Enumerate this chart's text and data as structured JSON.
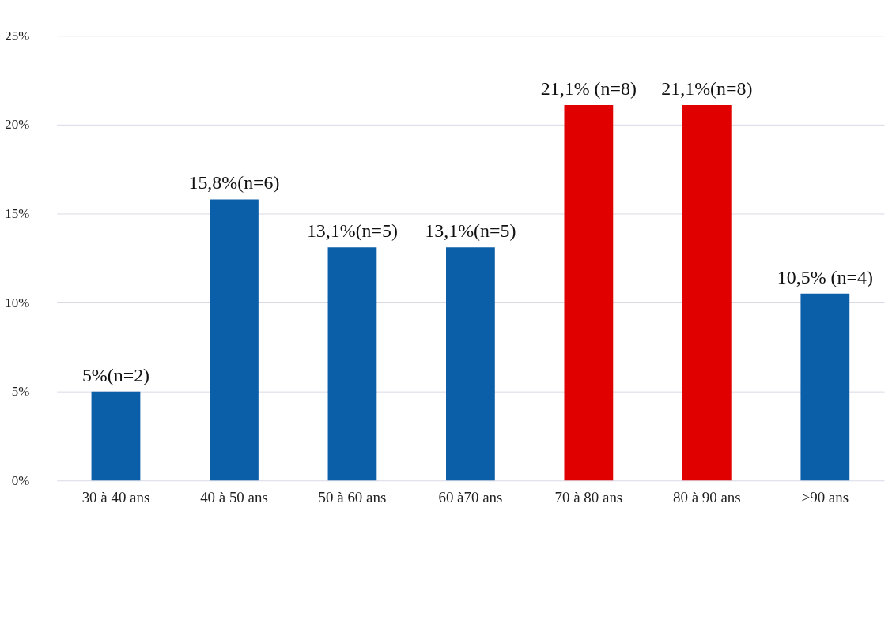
{
  "chart_data": {
    "type": "bar",
    "categories": [
      "30 à 40 ans",
      "40 à 50 ans",
      "50 à 60 ans",
      "60 à70 ans",
      "70 à 80 ans",
      "80 à 90 ans",
      ">90 ans"
    ],
    "values": [
      5,
      15.8,
      13.1,
      13.1,
      21.1,
      21.1,
      10.5
    ],
    "value_labels": [
      "5%(n=2)",
      "15,8%(n=6)",
      "13,1%(n=5)",
      "13,1%(n=5)",
      "21,1% (n=8)",
      "21,1%(n=8)",
      "10,5% (n=4)"
    ],
    "colors": [
      "#0b5ea8",
      "#0b5ea8",
      "#0b5ea8",
      "#0b5ea8",
      "#e00000",
      "#e00000",
      "#0b5ea8"
    ],
    "ylim": [
      0,
      25
    ],
    "yticks": [
      {
        "value": 0,
        "label": "0%"
      },
      {
        "value": 5,
        "label": "5%"
      },
      {
        "value": 10,
        "label": "10%"
      },
      {
        "value": 15,
        "label": "15%"
      },
      {
        "value": 20,
        "label": "20%"
      },
      {
        "value": 25,
        "label": "25%"
      }
    ],
    "grid": "y",
    "legend": false
  }
}
